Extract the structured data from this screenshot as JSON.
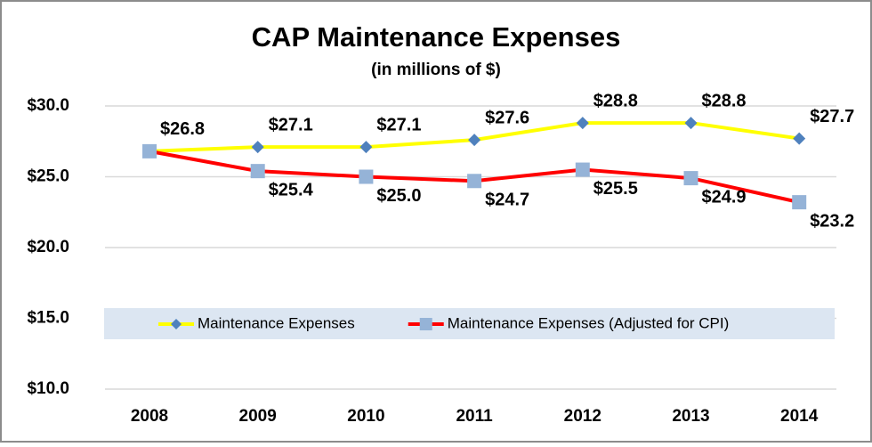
{
  "chart_data": {
    "type": "line",
    "title": "CAP Maintenance Expenses",
    "subtitle": "(in millions of $)",
    "categories": [
      "2008",
      "2009",
      "2010",
      "2011",
      "2012",
      "2013",
      "2014"
    ],
    "series": [
      {
        "name": "Maintenance Expenses",
        "color": "#ffff00",
        "marker": "diamond",
        "marker_color": "#4f81bd",
        "values": [
          26.8,
          27.1,
          27.1,
          27.6,
          28.8,
          28.8,
          27.7
        ],
        "value_labels": [
          "$26.8",
          "$27.1",
          "$27.1",
          "$27.6",
          "$28.8",
          "$28.8",
          "$27.7"
        ]
      },
      {
        "name": "Maintenance Expenses (Adjusted for CPI)",
        "color": "#ff0000",
        "marker": "square",
        "marker_color": "#95b3d7",
        "values": [
          26.8,
          25.4,
          25.0,
          24.7,
          25.5,
          24.9,
          23.2
        ],
        "value_labels": [
          null,
          "$25.4",
          "$25.0",
          "$24.7",
          "$25.5",
          "$24.9",
          "$23.2"
        ]
      }
    ],
    "ylim": [
      10,
      30
    ],
    "yticks": [
      {
        "value": 10,
        "label": "$10.0"
      },
      {
        "value": 15,
        "label": "$15.0"
      },
      {
        "value": 20,
        "label": "$20.0"
      },
      {
        "value": 25,
        "label": "$25.0"
      },
      {
        "value": 30,
        "label": "$30.0"
      }
    ],
    "grid": true
  }
}
